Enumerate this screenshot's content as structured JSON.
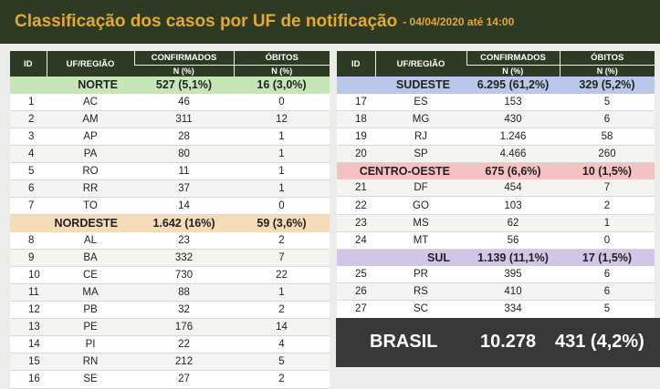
{
  "header": {
    "title": "Classificação dos casos por UF de notificação",
    "subtitle": "- 04/04/2020 até 14:00"
  },
  "columns": {
    "id": "ID",
    "uf_regiao": "UF/REGIÃO",
    "confirmados": "CONFIRMADOS",
    "obitos": "ÓBITOS",
    "n_pct": "N (%)"
  },
  "left_table": [
    {
      "type": "region",
      "name": "NORTE",
      "confirmados": "527 (5,1%)",
      "obitos": "16 (3,0%)",
      "color": "#c6e6b8"
    },
    {
      "id": "1",
      "uf": "AC",
      "confirmados": "46",
      "obitos": "0"
    },
    {
      "id": "2",
      "uf": "AM",
      "confirmados": "311",
      "obitos": "12"
    },
    {
      "id": "3",
      "uf": "AP",
      "confirmados": "28",
      "obitos": "1"
    },
    {
      "id": "4",
      "uf": "PA",
      "confirmados": "80",
      "obitos": "1"
    },
    {
      "id": "5",
      "uf": "RO",
      "confirmados": "11",
      "obitos": "1"
    },
    {
      "id": "6",
      "uf": "RR",
      "confirmados": "37",
      "obitos": "1"
    },
    {
      "id": "7",
      "uf": "TO",
      "confirmados": "14",
      "obitos": "0"
    },
    {
      "type": "region",
      "name": "NORDESTE",
      "confirmados": "1.642 (16%)",
      "obitos": "59 (3,6%)",
      "color": "#f5dbb6"
    },
    {
      "id": "8",
      "uf": "AL",
      "confirmados": "23",
      "obitos": "2"
    },
    {
      "id": "9",
      "uf": "BA",
      "confirmados": "332",
      "obitos": "7"
    },
    {
      "id": "10",
      "uf": "CE",
      "confirmados": "730",
      "obitos": "22"
    },
    {
      "id": "11",
      "uf": "MA",
      "confirmados": "88",
      "obitos": "1"
    },
    {
      "id": "12",
      "uf": "PB",
      "confirmados": "32",
      "obitos": "2"
    },
    {
      "id": "13",
      "uf": "PE",
      "confirmados": "176",
      "obitos": "14"
    },
    {
      "id": "14",
      "uf": "PI",
      "confirmados": "22",
      "obitos": "4"
    },
    {
      "id": "15",
      "uf": "RN",
      "confirmados": "212",
      "obitos": "5"
    },
    {
      "id": "16",
      "uf": "SE",
      "confirmados": "27",
      "obitos": "2"
    }
  ],
  "right_table": [
    {
      "type": "region",
      "name": "SUDESTE",
      "confirmados": "6.295 (61,2%)",
      "obitos": "329 (5,2%)",
      "color": "#b9c8ea"
    },
    {
      "id": "17",
      "uf": "ES",
      "confirmados": "153",
      "obitos": "5"
    },
    {
      "id": "18",
      "uf": "MG",
      "confirmados": "430",
      "obitos": "6"
    },
    {
      "id": "19",
      "uf": "RJ",
      "confirmados": "1.246",
      "obitos": "58"
    },
    {
      "id": "20",
      "uf": "SP",
      "confirmados": "4.466",
      "obitos": "260"
    },
    {
      "type": "region",
      "name": "CENTRO-OESTE",
      "confirmados": "675 (6,6%)",
      "obitos": "10 (1,5%)",
      "color": "#f3c2c2"
    },
    {
      "id": "21",
      "uf": "DF",
      "confirmados": "454",
      "obitos": "7"
    },
    {
      "id": "22",
      "uf": "GO",
      "confirmados": "103",
      "obitos": "2"
    },
    {
      "id": "23",
      "uf": "MS",
      "confirmados": "62",
      "obitos": "1"
    },
    {
      "id": "24",
      "uf": "MT",
      "confirmados": "56",
      "obitos": "0"
    },
    {
      "type": "region",
      "name": "SUL",
      "confirmados": "1.139 (11,1%)",
      "obitos": "17 (1,5%)",
      "color": "#cfc6e8"
    },
    {
      "id": "25",
      "uf": "PR",
      "confirmados": "395",
      "obitos": "6"
    },
    {
      "id": "26",
      "uf": "RS",
      "confirmados": "410",
      "obitos": "6"
    },
    {
      "id": "27",
      "uf": "SC",
      "confirmados": "334",
      "obitos": "5"
    }
  ],
  "brasil": {
    "label": "BRASIL",
    "confirmados": "10.278",
    "obitos": "431 (4,2%)"
  }
}
